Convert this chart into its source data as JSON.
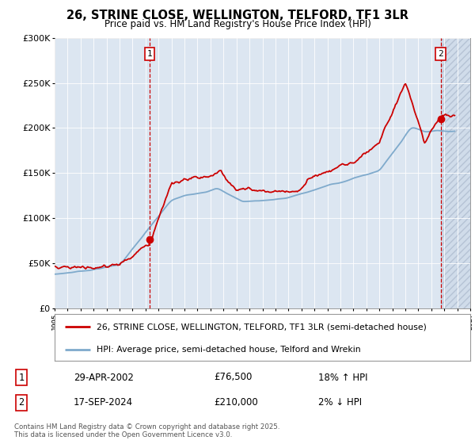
{
  "title": "26, STRINE CLOSE, WELLINGTON, TELFORD, TF1 3LR",
  "subtitle": "Price paid vs. HM Land Registry's House Price Index (HPI)",
  "legend_line1": "26, STRINE CLOSE, WELLINGTON, TELFORD, TF1 3LR (semi-detached house)",
  "legend_line2": "HPI: Average price, semi-detached house, Telford and Wrekin",
  "footer": "Contains HM Land Registry data © Crown copyright and database right 2025.\nThis data is licensed under the Open Government Licence v3.0.",
  "annotation1_label": "1",
  "annotation1_date": "29-APR-2002",
  "annotation1_price": "£76,500",
  "annotation1_hpi": "18% ↑ HPI",
  "annotation2_label": "2",
  "annotation2_date": "17-SEP-2024",
  "annotation2_price": "£210,000",
  "annotation2_hpi": "2% ↓ HPI",
  "red_line_color": "#cc0000",
  "blue_line_color": "#7faacc",
  "plot_bg_color": "#dce6f1",
  "hatch_color": "#c8d4e4",
  "vline1_x": 2002.33,
  "vline2_x": 2024.72,
  "marker1_x": 2002.33,
  "marker1_y": 76500,
  "marker2_x": 2024.72,
  "marker2_y": 210000,
  "xmin": 1995,
  "xmax": 2027,
  "ymin": 0,
  "ymax": 300000,
  "yticks": [
    0,
    50000,
    100000,
    150000,
    200000,
    250000,
    300000
  ],
  "ytick_labels": [
    "£0",
    "£50K",
    "£100K",
    "£150K",
    "£200K",
    "£250K",
    "£300K"
  ]
}
